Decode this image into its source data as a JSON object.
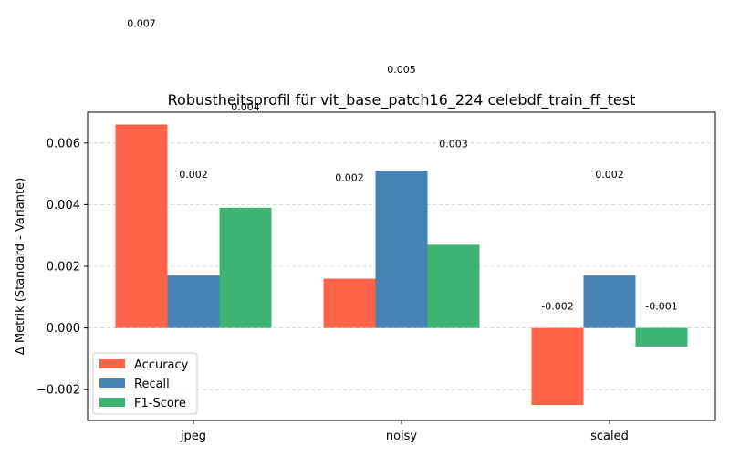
{
  "chart_data": {
    "type": "bar",
    "title": "Robustheitsprofil für vit_base_patch16_224 celebdf_train_ff_test",
    "xlabel": "",
    "ylabel": "Δ Metrik (Standard - Variante)",
    "categories": [
      "jpeg",
      "noisy",
      "scaled"
    ],
    "series": [
      {
        "name": "Accuracy",
        "color": "#ff6347",
        "values": [
          0.0066,
          0.0016,
          -0.0025
        ],
        "labels": [
          "0.007",
          "0.002",
          "-0.002"
        ]
      },
      {
        "name": "Recall",
        "color": "#4682b4",
        "values": [
          0.0017,
          0.0051,
          0.0017
        ],
        "labels": [
          "0.002",
          "0.005",
          "0.002"
        ]
      },
      {
        "name": "F1-Score",
        "color": "#3cb371",
        "values": [
          0.0039,
          0.0027,
          -0.0006
        ],
        "labels": [
          "0.004",
          "0.003",
          "-0.001"
        ]
      }
    ],
    "ylim": [
      -0.003,
      0.007
    ],
    "yticks": [
      -0.002,
      0.0,
      0.002,
      0.004,
      0.006
    ],
    "ytick_labels": [
      "−0.002",
      "0.000",
      "0.002",
      "0.004",
      "0.006"
    ],
    "grid": true,
    "legend_position": "lower-left"
  }
}
